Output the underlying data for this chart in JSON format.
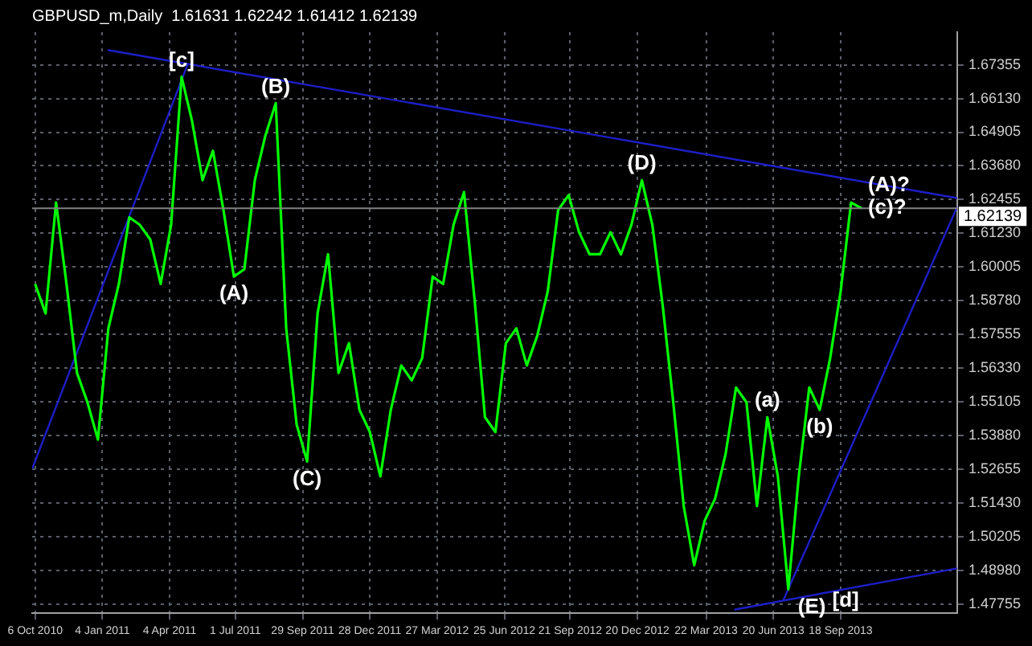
{
  "chart_data": {
    "type": "line",
    "title": "GBPUSD_m,Daily  1.61631 1.62242 1.61412 1.62139",
    "x": [
      "2010-10-06",
      "2010-10-20",
      "2010-11-03",
      "2010-11-17",
      "2010-12-01",
      "2010-12-15",
      "2010-12-29",
      "2011-01-12",
      "2011-01-26",
      "2011-02-09",
      "2011-02-23",
      "2011-03-09",
      "2011-03-23",
      "2011-04-06",
      "2011-04-20",
      "2011-05-04",
      "2011-05-18",
      "2011-06-01",
      "2011-06-15",
      "2011-06-29",
      "2011-07-13",
      "2011-07-27",
      "2011-08-10",
      "2011-08-24",
      "2011-09-07",
      "2011-09-21",
      "2011-10-05",
      "2011-10-19",
      "2011-11-02",
      "2011-11-16",
      "2011-11-30",
      "2011-12-14",
      "2011-12-28",
      "2012-01-11",
      "2012-01-25",
      "2012-02-08",
      "2012-02-22",
      "2012-03-07",
      "2012-03-21",
      "2012-04-04",
      "2012-04-18",
      "2012-05-02",
      "2012-05-16",
      "2012-05-30",
      "2012-06-13",
      "2012-06-27",
      "2012-07-11",
      "2012-07-25",
      "2012-08-08",
      "2012-08-22",
      "2012-09-05",
      "2012-09-19",
      "2012-10-03",
      "2012-10-17",
      "2012-10-31",
      "2012-11-14",
      "2012-11-28",
      "2012-12-12",
      "2012-12-26",
      "2013-01-09",
      "2013-01-23",
      "2013-02-06",
      "2013-02-20",
      "2013-03-06",
      "2013-03-20",
      "2013-04-03",
      "2013-04-17",
      "2013-05-01",
      "2013-05-15",
      "2013-05-29",
      "2013-06-12",
      "2013-06-26",
      "2013-07-10",
      "2013-07-24",
      "2013-08-07",
      "2013-08-21",
      "2013-09-04",
      "2013-09-18",
      "2013-10-02",
      "2013-10-16"
    ],
    "series": [
      {
        "color": "#00ff00",
        "values": [
          1.5939,
          1.5832,
          1.6235,
          1.5939,
          1.5616,
          1.5509,
          1.5374,
          1.5778,
          1.5939,
          1.6181,
          1.6154,
          1.6101,
          1.5939,
          1.6154,
          1.6692,
          1.6531,
          1.6316,
          1.6423,
          1.6208,
          1.5966,
          1.5993,
          1.6316,
          1.6477,
          1.6596,
          1.5778,
          1.5428,
          1.5294,
          1.5832,
          1.6047,
          1.5616,
          1.5724,
          1.5482,
          1.5401,
          1.524,
          1.5482,
          1.5643,
          1.5589,
          1.567,
          1.5966,
          1.5939,
          1.6154,
          1.6273,
          1.5885,
          1.5455,
          1.5401,
          1.5724,
          1.5778,
          1.5643,
          1.5751,
          1.5912,
          1.6208,
          1.6262,
          1.6127,
          1.6047,
          1.6047,
          1.6127,
          1.6047,
          1.6154,
          1.6316,
          1.6154,
          1.5858,
          1.5509,
          1.5132,
          1.4917,
          1.5079,
          1.5159,
          1.5321,
          1.5563,
          1.5509,
          1.5132,
          1.5455,
          1.524,
          1.483,
          1.524,
          1.5563,
          1.5482,
          1.567,
          1.5912,
          1.6235,
          1.6214
        ]
      },
      {
        "type": "line",
        "color": "#1e1ec8",
        "x": [
          "2011-01-11",
          "2014-02-21"
        ],
        "values": [
          1.6789,
          1.6251
        ]
      },
      {
        "type": "line",
        "color": "#1e1ec8",
        "x": [
          "2010-10-02",
          "2011-04-28"
        ],
        "values": [
          1.5267,
          1.6736
        ]
      },
      {
        "type": "line",
        "color": "#1e1ec8",
        "x": [
          "2013-07-03",
          "2014-02-21"
        ],
        "values": [
          1.4788,
          1.6219
        ]
      },
      {
        "type": "line",
        "color": "#1e1ec8",
        "x": [
          "2013-04-29",
          "2014-02-21"
        ],
        "values": [
          1.4756,
          1.4906
        ]
      }
    ],
    "xlim": [
      "2010-10-02",
      "2014-02-21"
    ],
    "xticks": [
      {
        "value": "2010-10-06",
        "label": "6 Oct 2010"
      },
      {
        "value": "2011-01-04",
        "label": "4 Jan 2011"
      },
      {
        "value": "2011-04-04",
        "label": "4 Apr 2011"
      },
      {
        "value": "2011-07-01",
        "label": "1 Jul 2011"
      },
      {
        "value": "2011-09-29",
        "label": "29 Sep 2011"
      },
      {
        "value": "2011-12-28",
        "label": "28 Dec 2011"
      },
      {
        "value": "2012-03-27",
        "label": "27 Mar 2012"
      },
      {
        "value": "2012-06-25",
        "label": "25 Jun 2012"
      },
      {
        "value": "2012-09-21",
        "label": "21 Sep 2012"
      },
      {
        "value": "2012-12-20",
        "label": "20 Dec 2012"
      },
      {
        "value": "2013-03-22",
        "label": "22 Mar 2013"
      },
      {
        "value": "2013-06-20",
        "label": "20 Jun 2013"
      },
      {
        "value": "2013-09-18",
        "label": "18 Sep 2013"
      }
    ],
    "ylim": [
      1.4743,
      1.6854
    ],
    "yticks": [
      1.47755,
      {
        "value": 1.4898,
        "label": "1.48980"
      },
      1.50205,
      {
        "value": 1.5143,
        "label": "1.51430"
      },
      1.52655,
      {
        "value": 1.5388,
        "label": "1.53880"
      },
      1.55105,
      {
        "value": 1.5633,
        "label": "1.56330"
      },
      1.57555,
      {
        "value": 1.5878,
        "label": "1.58780"
      },
      1.60005,
      {
        "value": 1.6123,
        "label": "1.61230"
      },
      1.62455,
      {
        "value": 1.6368,
        "label": "1.63680"
      },
      1.64905,
      {
        "value": 1.6613,
        "label": "1.66130"
      },
      1.67355
    ],
    "grid": true,
    "marker": "none",
    "ref_lines": [
      {
        "axis": "y",
        "value": 1.62139,
        "label": "1.62139",
        "color": "#808080"
      }
    ],
    "annotations": [
      {
        "text": "[c]",
        "x": "2011-04-20",
        "y": 1.6692
      },
      {
        "text": "(B)",
        "x": "2011-08-24",
        "y": 1.6596
      },
      {
        "text": "(A)",
        "x": "2011-06-29",
        "y": 1.5966
      },
      {
        "text": "(C)",
        "x": "2011-10-05",
        "y": 1.5294
      },
      {
        "text": "(D)",
        "x": "2012-12-26",
        "y": 1.6316
      },
      {
        "text": "(A)?",
        "x": "2013-10-16",
        "y": 1.6214
      },
      {
        "text": "(c)?",
        "x": "2013-10-16",
        "y": 1.6214
      },
      {
        "text": "(a)",
        "x": "2013-06-12",
        "y": 1.5455
      },
      {
        "text": "(b)",
        "x": "2013-08-21",
        "y": 1.5482
      },
      {
        "text": "(E)",
        "x": "2013-07-10",
        "y": 1.483
      },
      {
        "text": "[d]",
        "x": "2013-07-10",
        "y": 1.483
      }
    ]
  }
}
